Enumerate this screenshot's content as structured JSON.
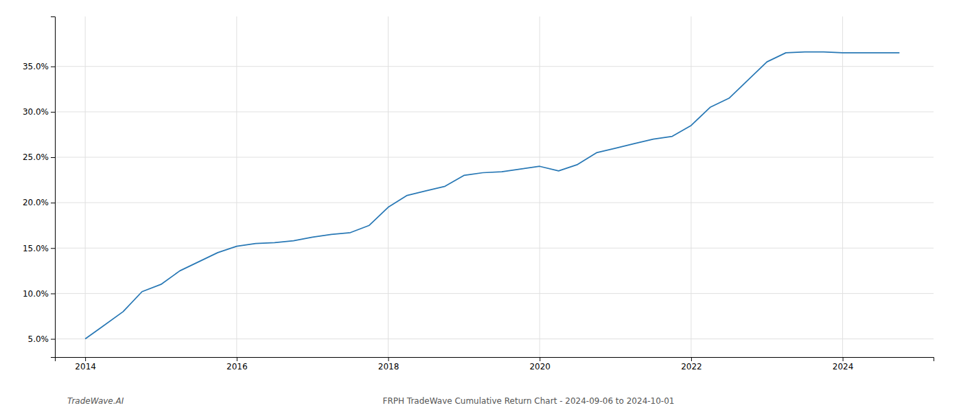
{
  "chart_data": {
    "type": "line",
    "x": [
      2014.0,
      2014.2,
      2014.5,
      2014.75,
      2015.0,
      2015.25,
      2015.5,
      2015.75,
      2016.0,
      2016.25,
      2016.5,
      2016.75,
      2017.0,
      2017.25,
      2017.5,
      2017.75,
      2018.0,
      2018.25,
      2018.5,
      2018.75,
      2019.0,
      2019.25,
      2019.5,
      2019.75,
      2020.0,
      2020.25,
      2020.5,
      2020.75,
      2021.0,
      2021.25,
      2021.5,
      2021.75,
      2022.0,
      2022.25,
      2022.5,
      2022.75,
      2023.0,
      2023.25,
      2023.5,
      2023.75,
      2024.0,
      2024.75
    ],
    "values": [
      5.0,
      6.2,
      8.0,
      10.2,
      11.0,
      12.5,
      13.5,
      14.5,
      15.2,
      15.5,
      15.6,
      15.8,
      16.2,
      16.5,
      16.7,
      17.5,
      19.5,
      20.8,
      21.3,
      21.8,
      23.0,
      23.3,
      23.4,
      23.7,
      24.0,
      23.5,
      24.2,
      25.5,
      26.0,
      26.5,
      27.0,
      27.3,
      28.5,
      30.5,
      31.5,
      33.5,
      35.5,
      36.5,
      36.6,
      36.6,
      36.5,
      36.5
    ],
    "color": "#2878b5",
    "xlim": [
      2013.6,
      2025.2
    ],
    "xticks": [
      2014,
      2016,
      2018,
      2020,
      2022,
      2024
    ],
    "ylim": [
      3.0,
      40.5
    ],
    "yticks": [
      {
        "value": 5.0,
        "label": "5.0%"
      },
      {
        "value": 10.0,
        "label": "10.0%"
      },
      {
        "value": 15.0,
        "label": "15.0%"
      },
      {
        "value": 20.0,
        "label": "20.0%"
      },
      {
        "value": 25.0,
        "label": "25.0%"
      },
      {
        "value": 30.0,
        "label": "30.0%"
      },
      {
        "value": 35.0,
        "label": "35.0%"
      }
    ],
    "grid": true,
    "annotations": [
      "TradeWave.AI",
      "FRPH TradeWave Cumulative Return Chart - 2024-09-06 to 2024-10-01"
    ]
  }
}
